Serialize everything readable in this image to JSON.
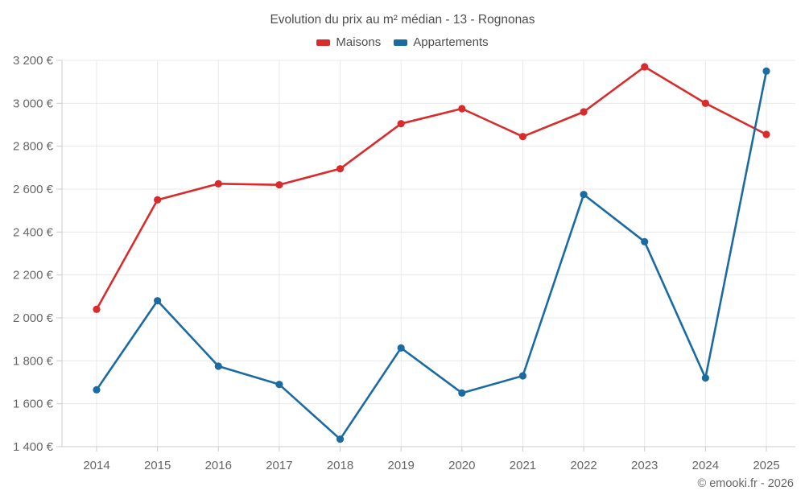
{
  "header": {
    "title": "Evolution du prix au m² médian - 13 - Rognonas"
  },
  "footer": {
    "copyright": "© emooki.fr - 2026"
  },
  "colors": {
    "maisons": "#d92b2b",
    "appartements": "#1b6ba3",
    "grid": "#e8e8e8",
    "axis": "#cccccc",
    "tick_text": "#666666",
    "title_text": "#4d4d4d",
    "background": "#ffffff"
  },
  "chart_data": {
    "type": "line",
    "title": "Evolution du prix au m² médian - 13 - Rognonas",
    "xlabel": "",
    "ylabel": "",
    "categories": [
      "2014",
      "2015",
      "2016",
      "2017",
      "2018",
      "2019",
      "2020",
      "2021",
      "2022",
      "2023",
      "2024",
      "2025"
    ],
    "series": [
      {
        "name": "Maisons",
        "color": "#d92b2b",
        "values": [
          2040,
          2550,
          2625,
          2620,
          2695,
          2905,
          2975,
          2845,
          2960,
          3170,
          3000,
          2855
        ]
      },
      {
        "name": "Appartements",
        "color": "#1b6ba3",
        "values": [
          1665,
          2080,
          1775,
          1690,
          1435,
          1860,
          1650,
          1730,
          2575,
          2355,
          1720,
          3150
        ]
      }
    ],
    "ylim": [
      1400,
      3200
    ],
    "y_tick_step": 200,
    "y_tick_suffix": "€",
    "y_tick_labels": [
      "1 400 €",
      "1 600 €",
      "1 800 €",
      "2 000 €",
      "2 200 €",
      "2 400 €",
      "2 600 €",
      "2 800 €",
      "3 000 €",
      "3 200 €"
    ],
    "grid": true,
    "legend_position": "top",
    "marker": "circle"
  }
}
